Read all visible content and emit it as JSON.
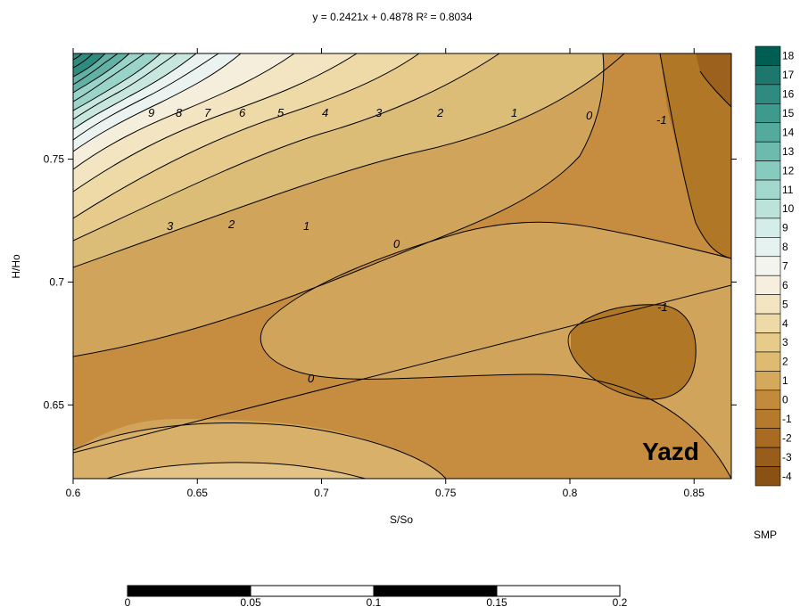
{
  "chart_data": {
    "type": "contour",
    "title": "y = 0.2421x + 0.4878 R² = 0.8034",
    "xlabel": "S/So",
    "ylabel": "H/Ho",
    "xlim": [
      0.6,
      0.865
    ],
    "ylim": [
      0.62,
      0.793
    ],
    "xticks": [
      "0.6",
      "0.65",
      "0.7",
      "0.75",
      "0.8",
      "0.85"
    ],
    "yticks": [
      "0.65",
      "0.7",
      "0.75"
    ],
    "annotation": "Yazd",
    "regression_line": {
      "slope": 0.2421,
      "intercept": 0.4878
    },
    "contour_labels": [
      "9",
      "8",
      "7",
      "6",
      "5",
      "4",
      "3",
      "2",
      "1",
      "0",
      "-1",
      "3",
      "2",
      "1",
      "0",
      "0",
      "-1"
    ],
    "colorbar": {
      "title": "SMP",
      "levels": [
        "18",
        "17",
        "16",
        "15",
        "14",
        "13",
        "12",
        "11",
        "10",
        "9",
        "8",
        "7",
        "6",
        "5",
        "4",
        "3",
        "2",
        "1",
        "0",
        "-1",
        "-2",
        "-3",
        "-4"
      ],
      "colors": [
        "#005f52",
        "#1d776c",
        "#2f8a7f",
        "#3f9a8e",
        "#55aa9e",
        "#6dbbaf",
        "#87cbbf",
        "#a2d8cd",
        "#bce3da",
        "#d4ede8",
        "#e6f2ef",
        "#f3f4ee",
        "#f7efdd",
        "#f3e5c2",
        "#eedaa6",
        "#e7cb8b",
        "#dfbb72",
        "#d4a95c",
        "#c48a3c",
        "#b67a2c",
        "#a96a22",
        "#995d1b",
        "#8a5115"
      ]
    },
    "scalebar": {
      "ticks": [
        "0",
        "0.05",
        "0.1",
        "0.15",
        "0.2"
      ]
    }
  }
}
